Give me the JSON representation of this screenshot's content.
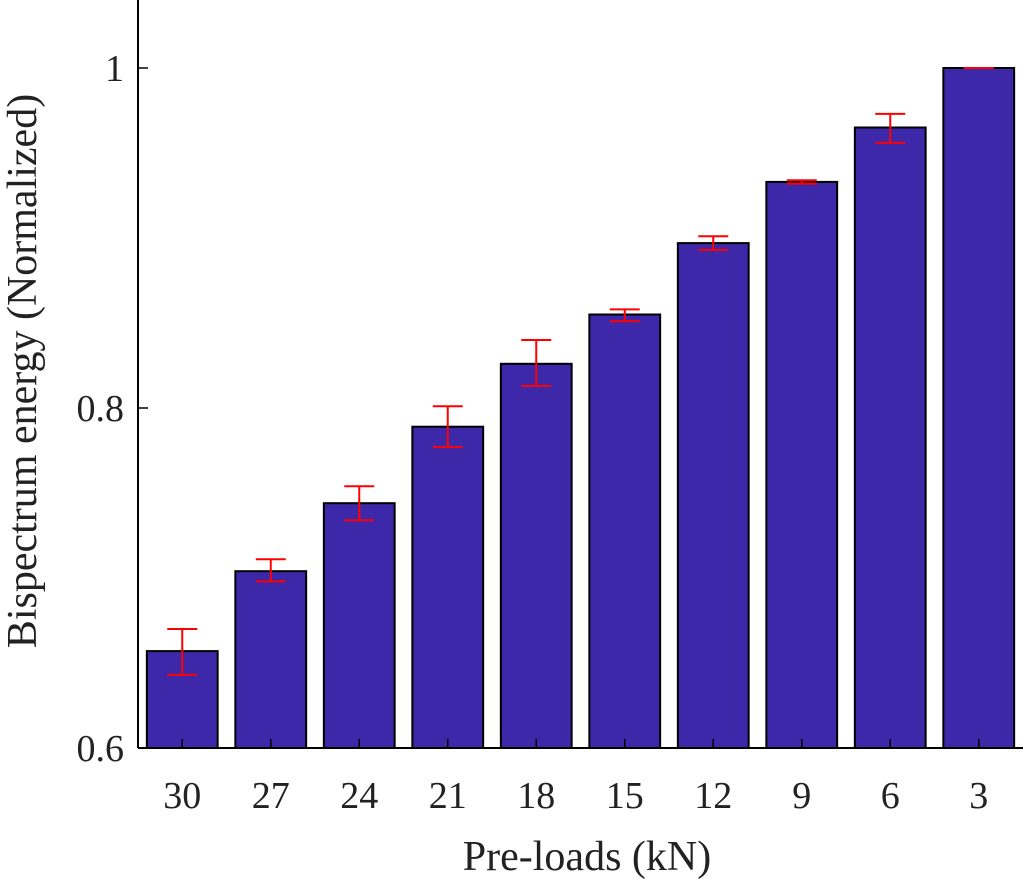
{
  "chart_data": {
    "type": "bar",
    "title": "",
    "xlabel": "Pre-loads (kN)",
    "ylabel": "Bispectrum energy (Normalized)",
    "categories": [
      "30",
      "27",
      "24",
      "21",
      "18",
      "15",
      "12",
      "9",
      "6",
      "3"
    ],
    "values": [
      0.657,
      0.704,
      0.744,
      0.789,
      0.826,
      0.855,
      0.897,
      0.933,
      0.965,
      1.0
    ],
    "error_low": [
      0.643,
      0.698,
      0.734,
      0.777,
      0.813,
      0.851,
      0.893,
      0.932,
      0.956,
      1.0
    ],
    "error_high": [
      0.67,
      0.711,
      0.754,
      0.801,
      0.84,
      0.858,
      0.901,
      0.934,
      0.973,
      1.0
    ],
    "ylim": [
      0.6,
      1.04
    ],
    "yticks": [
      0.6,
      0.8,
      1.0
    ],
    "ytick_labels": [
      "0.6",
      "0.8",
      "1"
    ],
    "grid": false,
    "colors": {
      "bar_fill": "#3c28a8",
      "bar_edge": "#000000",
      "error_bar": "#ff0000"
    }
  }
}
